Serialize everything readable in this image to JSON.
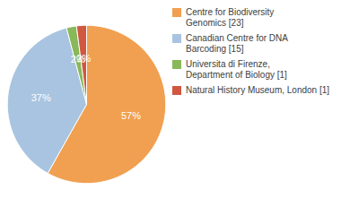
{
  "chart_data": {
    "type": "pie",
    "categories": [
      "Centre for Biodiversity\nGenomics [23]",
      "Canadian Centre for DNA\nBarcoding [15]",
      "Universita di Firenze,\nDepartment of Biology [1]",
      "Natural History Museum, London [1]"
    ],
    "values": [
      57,
      37,
      2,
      2
    ],
    "value_labels": [
      "57%",
      "37%",
      "2%",
      "2%"
    ],
    "colors": [
      "#f0a050",
      "#a8c4e0",
      "#88b858",
      "#d05840"
    ],
    "data_labels": true,
    "legend": "right"
  }
}
